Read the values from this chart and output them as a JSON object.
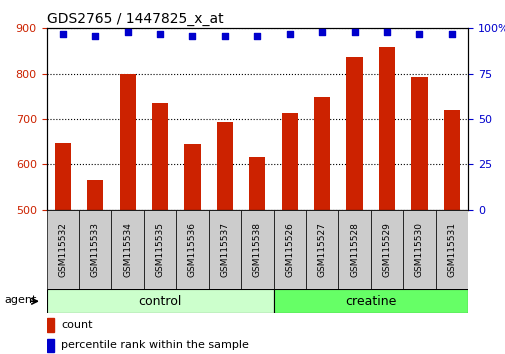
{
  "title": "GDS2765 / 1447825_x_at",
  "samples": [
    "GSM115532",
    "GSM115533",
    "GSM115534",
    "GSM115535",
    "GSM115536",
    "GSM115537",
    "GSM115538",
    "GSM115526",
    "GSM115527",
    "GSM115528",
    "GSM115529",
    "GSM115530",
    "GSM115531"
  ],
  "counts": [
    648,
    565,
    800,
    735,
    645,
    693,
    617,
    714,
    748,
    836,
    858,
    793,
    720
  ],
  "percentiles": [
    97,
    96,
    98,
    97,
    96,
    96,
    96,
    97,
    98,
    98,
    98,
    97,
    97
  ],
  "bar_color": "#cc2200",
  "dot_color": "#0000cc",
  "ylim_left": [
    500,
    900
  ],
  "ylim_right": [
    0,
    100
  ],
  "yticks_left": [
    500,
    600,
    700,
    800,
    900
  ],
  "yticks_right": [
    0,
    25,
    50,
    75,
    100
  ],
  "control_color": "#ccffcc",
  "creatine_color": "#66ff66",
  "tick_label_color_left": "#cc2200",
  "tick_label_color_right": "#0000cc",
  "legend_items": [
    "count",
    "percentile rank within the sample"
  ],
  "agent_label": "agent",
  "control_count": 7,
  "creatine_count": 6,
  "label_bg_color": "#cccccc",
  "fig_width": 5.06,
  "fig_height": 3.54,
  "dpi": 100
}
